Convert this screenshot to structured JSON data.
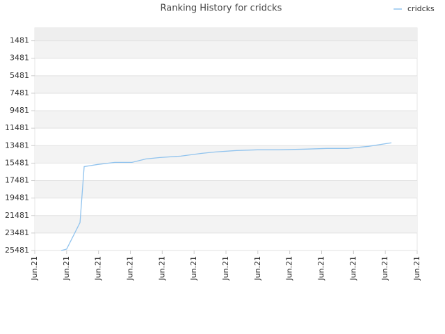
{
  "chart_data": {
    "type": "line",
    "title": "Ranking History for cridcks",
    "xlim": [
      0,
      12
    ],
    "xticks": [
      {
        "value": 0,
        "label": "Jun.21"
      },
      {
        "value": 1,
        "label": "Jun.21"
      },
      {
        "value": 2,
        "label": "Jun.21"
      },
      {
        "value": 3,
        "label": "Jun.21"
      },
      {
        "value": 4,
        "label": "Jun.21"
      },
      {
        "value": 5,
        "label": "Jun.21"
      },
      {
        "value": 6,
        "label": "Jun.21"
      },
      {
        "value": 7,
        "label": "Jun.21"
      },
      {
        "value": 8,
        "label": "Jun.21"
      },
      {
        "value": 9,
        "label": "Jun.21"
      },
      {
        "value": 10,
        "label": "Jun.21"
      },
      {
        "value": 11,
        "label": "Jun.21"
      },
      {
        "value": 12,
        "label": "Jun.21"
      }
    ],
    "ylim": [
      25481,
      0
    ],
    "yticks": [
      1481,
      3481,
      5481,
      7481,
      9481,
      11481,
      13481,
      15481,
      17481,
      19481,
      21481,
      23481,
      25481
    ],
    "legend": "top-right",
    "series": [
      {
        "name": "cridcks",
        "color": "#90c3ee",
        "x": [
          0.83,
          1.0,
          1.42,
          1.55,
          1.96,
          2.51,
          3.05,
          3.49,
          3.93,
          4.58,
          5.24,
          5.67,
          6.33,
          6.98,
          7.64,
          8.51,
          9.16,
          9.82,
          10.47,
          11.19
        ],
        "values": [
          25481,
          25321,
          22281,
          15881,
          15641,
          15401,
          15401,
          15001,
          14841,
          14681,
          14361,
          14201,
          14041,
          13961,
          13961,
          13881,
          13801,
          13801,
          13561,
          13161
        ]
      }
    ]
  }
}
